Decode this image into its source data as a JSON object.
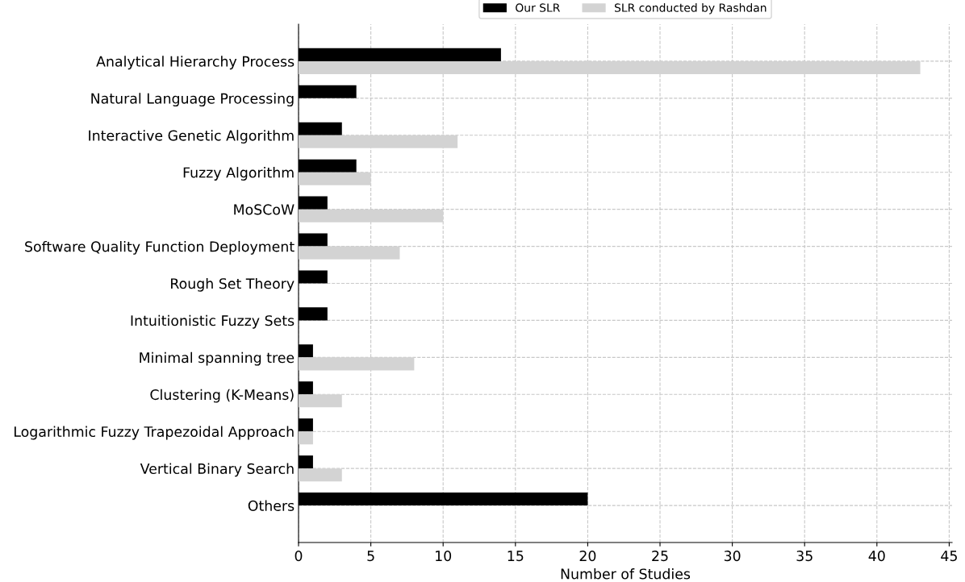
{
  "chart_data": {
    "type": "bar",
    "orientation": "horizontal",
    "xlabel": "Number of Studies",
    "categories": [
      "Analytical Hierarchy Process",
      "Natural Language Processing",
      "Interactive Genetic Algorithm",
      "Fuzzy Algorithm",
      "MoSCoW",
      "Software Quality Function Deployment",
      "Rough Set Theory",
      "Intuitionistic Fuzzy Sets",
      "Minimal spanning tree",
      "Clustering (K-Means)",
      "Logarithmic Fuzzy Trapezoidal Approach",
      "Vertical Binary Search",
      "Others"
    ],
    "series": [
      {
        "name": "Our SLR",
        "color": "#000000",
        "values": [
          14,
          4,
          3,
          4,
          2,
          2,
          2,
          2,
          1,
          1,
          1,
          1,
          20
        ]
      },
      {
        "name": "SLR conducted by Rashdan",
        "color": "#d3d3d3",
        "values": [
          43,
          null,
          11,
          5,
          10,
          7,
          null,
          null,
          8,
          3,
          1,
          3,
          null
        ]
      }
    ],
    "xlim": [
      0,
      45.2
    ],
    "xticks": [
      0,
      5,
      10,
      15,
      20,
      25,
      30,
      35,
      40,
      45
    ],
    "grid": true,
    "legend": "top"
  }
}
